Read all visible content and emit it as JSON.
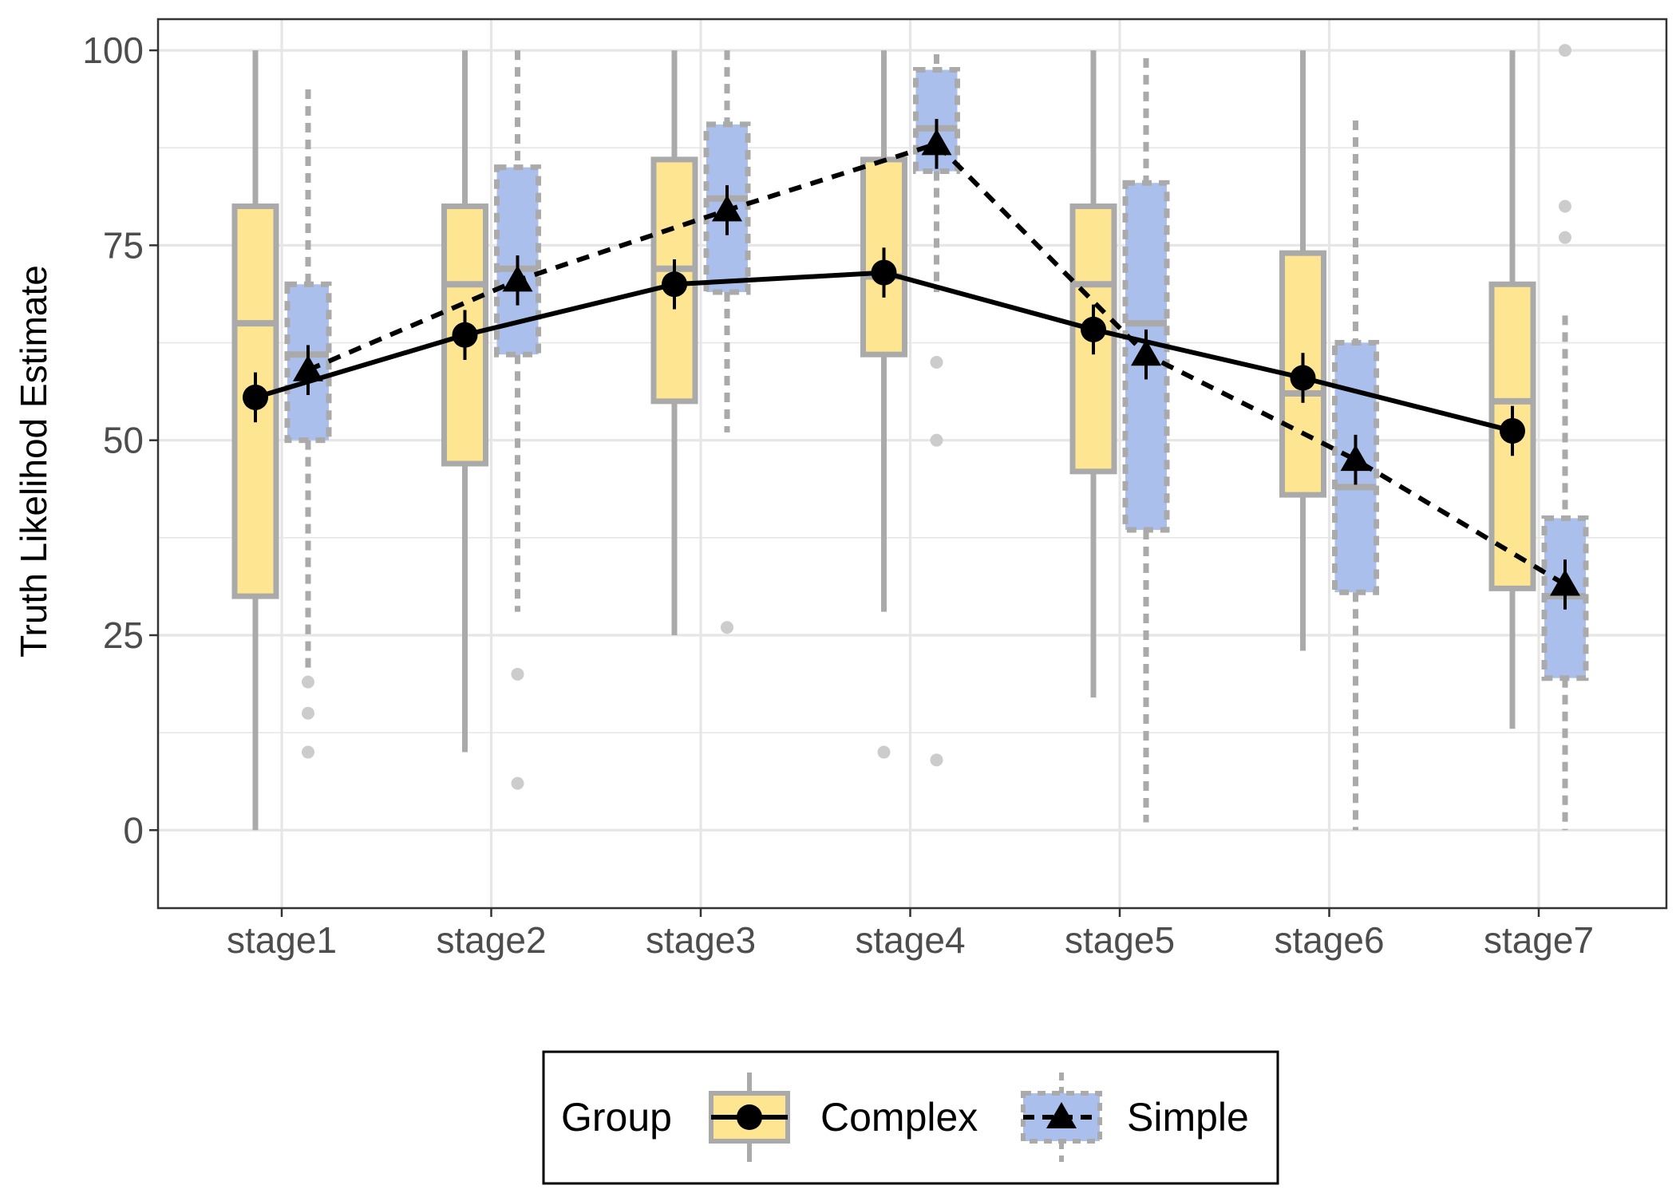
{
  "chart_data": {
    "type": "box",
    "ylabel": "Truth Likelihod Estimate",
    "xlabel": "",
    "categories": [
      "stage1",
      "stage2",
      "stage3",
      "stage4",
      "stage5",
      "stage6",
      "stage7"
    ],
    "ylim": [
      -10,
      104
    ],
    "yticks": [
      0,
      25,
      50,
      75,
      100
    ],
    "grid": true,
    "legend": {
      "placement": "bottom",
      "title": "Group",
      "entries": [
        "Complex",
        "Simple"
      ]
    },
    "colors": {
      "Complex": "#fee591",
      "Simple": "#abbfec",
      "box_outline": "#aaaaaa",
      "outlier": "#cccccc",
      "line": "#000000",
      "grid": "#e6e6e6",
      "panel_border": "#333333"
    },
    "series": [
      {
        "name": "Complex",
        "marker": "circle",
        "line_style": "solid",
        "boxes": [
          {
            "whisker_low": 0,
            "q1": 30,
            "median": 65,
            "q3": 80,
            "whisker_high": 100,
            "outliers": []
          },
          {
            "whisker_low": 10,
            "q1": 47,
            "median": 70,
            "q3": 80,
            "whisker_high": 100,
            "outliers": []
          },
          {
            "whisker_low": 25,
            "q1": 55,
            "median": 72,
            "q3": 86,
            "whisker_high": 100,
            "outliers": []
          },
          {
            "whisker_low": 28,
            "q1": 61,
            "median": 71,
            "q3": 86,
            "whisker_high": 100,
            "outliers": [
              10
            ]
          },
          {
            "whisker_low": 17,
            "q1": 46,
            "median": 70,
            "q3": 80,
            "whisker_high": 100,
            "outliers": []
          },
          {
            "whisker_low": 23,
            "q1": 43,
            "median": 56,
            "q3": 74,
            "whisker_high": 100,
            "outliers": []
          },
          {
            "whisker_low": 13,
            "q1": 31,
            "median": 55,
            "q3": 70,
            "whisker_high": 100,
            "outliers": []
          }
        ],
        "means": [
          55.5,
          63.5,
          70,
          71.5,
          64.2,
          58,
          51.2
        ],
        "ci": [
          3.2,
          3.2,
          3.2,
          3.2,
          3.2,
          3.2,
          3.2
        ]
      },
      {
        "name": "Simple",
        "marker": "triangle",
        "line_style": "dashed",
        "boxes": [
          {
            "whisker_low": 20,
            "q1": 50,
            "median": 61,
            "q3": 70,
            "whisker_high": 95,
            "outliers": [
              19,
              15,
              10
            ]
          },
          {
            "whisker_low": 28,
            "q1": 61,
            "median": 72,
            "q3": 85,
            "whisker_high": 100,
            "outliers": [
              20,
              6
            ]
          },
          {
            "whisker_low": 51,
            "q1": 69,
            "median": 81,
            "q3": 90.5,
            "whisker_high": 100,
            "outliers": [
              26
            ]
          },
          {
            "whisker_low": 69,
            "q1": 84.5,
            "median": 90,
            "q3": 97.5,
            "whisker_high": 99.5,
            "outliers": [
              60,
              50,
              9
            ]
          },
          {
            "whisker_low": 1,
            "q1": 38.5,
            "median": 65,
            "q3": 83,
            "whisker_high": 99,
            "outliers": []
          },
          {
            "whisker_low": 0,
            "q1": 30.5,
            "median": 44,
            "q3": 62.5,
            "whisker_high": 91,
            "outliers": []
          },
          {
            "whisker_low": 0,
            "q1": 19.5,
            "median": 30,
            "q3": 40,
            "whisker_high": 66,
            "outliers": [
              100,
              80,
              76
            ]
          }
        ],
        "means": [
          59,
          70.5,
          79.5,
          88,
          61,
          47.5,
          31.5
        ],
        "ci": [
          3.2,
          3.2,
          3.2,
          3.2,
          3.2,
          3.2,
          3.2
        ]
      }
    ]
  }
}
